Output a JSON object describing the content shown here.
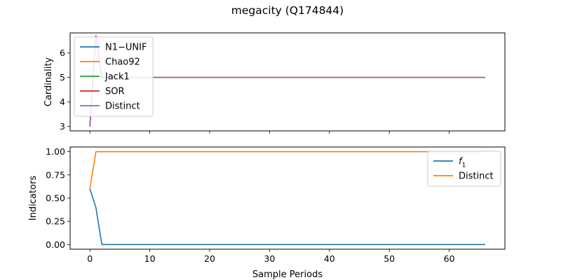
{
  "figure": {
    "title": "megacity (Q174844)"
  },
  "chart_data": [
    {
      "type": "line",
      "ylabel": "Cardinality",
      "xlabel": "",
      "xlim": [
        -3.3,
        69.3
      ],
      "ylim": [
        2.82,
        6.82
      ],
      "xticks": [
        0,
        10,
        20,
        30,
        40,
        50,
        60
      ],
      "xtick_labels_shown": false,
      "yticks": [
        3,
        4,
        5,
        6
      ],
      "ytick_labels": [
        "3",
        "4",
        "5",
        "6"
      ],
      "legend_position": "upper-left",
      "series": [
        {
          "name": "N1−UNIF",
          "color": "#1f77b4",
          "points": [
            [
              0,
              3
            ],
            [
              1,
              6.7
            ],
            [
              2,
              5
            ],
            [
              66,
              5
            ]
          ]
        },
        {
          "name": "Chao92",
          "color": "#ff7f0e",
          "points": [
            [
              0,
              3
            ],
            [
              1,
              6.7
            ],
            [
              2,
              5
            ],
            [
              66,
              5
            ]
          ]
        },
        {
          "name": "Jack1",
          "color": "#2ca02c",
          "points": [
            [
              0,
              3
            ],
            [
              1,
              6.7
            ],
            [
              2,
              5
            ],
            [
              66,
              5
            ]
          ]
        },
        {
          "name": "SOR",
          "color": "#d62728",
          "points": [
            [
              0,
              3
            ],
            [
              1,
              6.7
            ],
            [
              2,
              5
            ],
            [
              66,
              5
            ]
          ]
        },
        {
          "name": "Distinct",
          "color": "#9467bd",
          "points": [
            [
              0,
              3
            ],
            [
              1,
              6.7
            ],
            [
              2,
              5
            ],
            [
              66,
              5
            ]
          ]
        }
      ]
    },
    {
      "type": "line",
      "ylabel": "Indicators",
      "xlabel": "Sample Periods",
      "xlim": [
        -3.3,
        69.3
      ],
      "ylim": [
        -0.05,
        1.05
      ],
      "xticks": [
        0,
        10,
        20,
        30,
        40,
        50,
        60
      ],
      "xtick_labels": [
        "0",
        "10",
        "20",
        "30",
        "40",
        "50",
        "60"
      ],
      "xtick_labels_shown": true,
      "yticks": [
        0,
        0.25,
        0.5,
        0.75,
        1.0
      ],
      "ytick_labels": [
        "0.00",
        "0.25",
        "0.50",
        "0.75",
        "1.00"
      ],
      "legend_position": "upper-right",
      "series": [
        {
          "name": "f1",
          "name_main": "f",
          "name_sub": "1",
          "color": "#1f77b4",
          "points": [
            [
              0,
              0.6
            ],
            [
              1,
              0.4
            ],
            [
              2,
              0
            ],
            [
              66,
              0
            ]
          ]
        },
        {
          "name": "Distinct",
          "color": "#ff7f0e",
          "points": [
            [
              0,
              0.6
            ],
            [
              1,
              1.0
            ],
            [
              2,
              1.0
            ],
            [
              66,
              1.0
            ]
          ]
        }
      ]
    }
  ]
}
